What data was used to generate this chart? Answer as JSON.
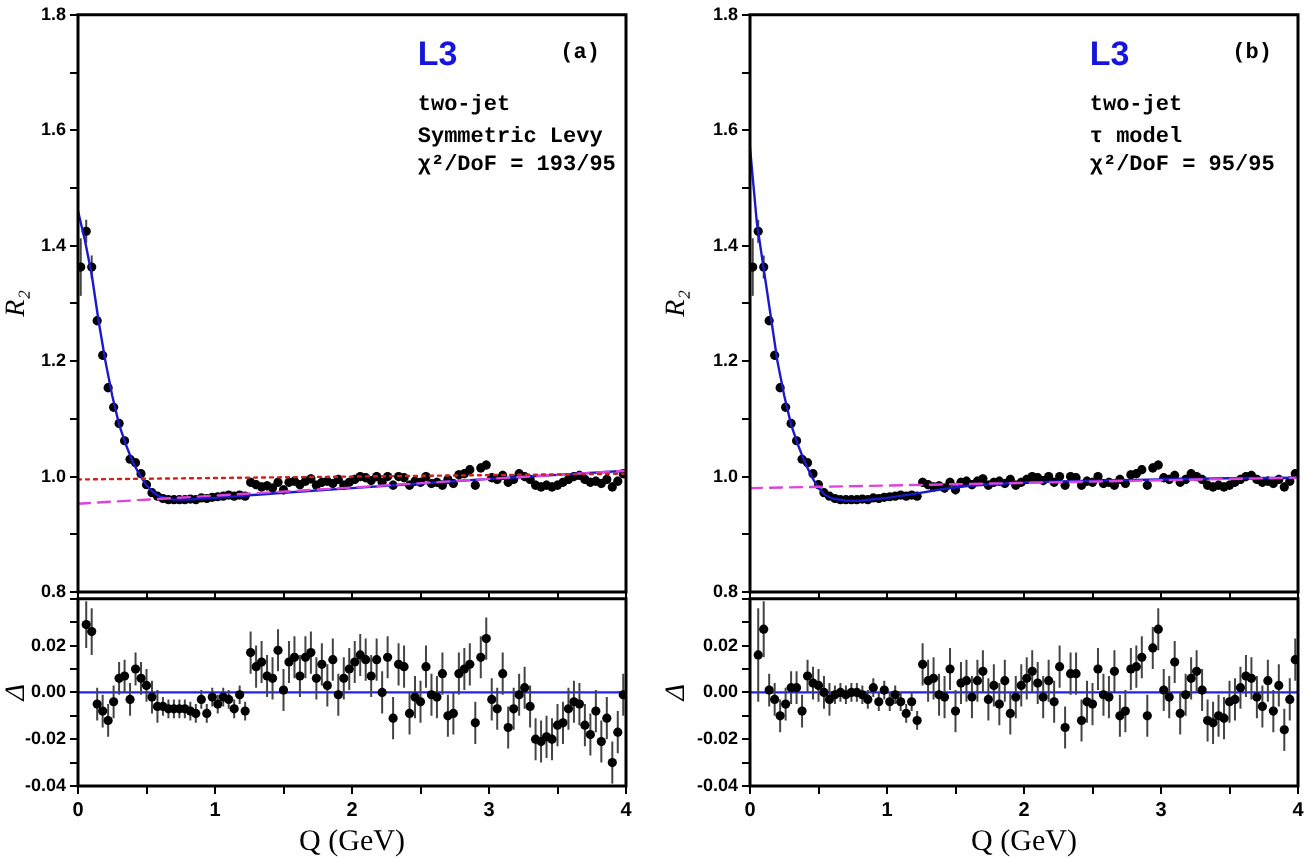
{
  "chart_data": [
    {
      "type": "scatter",
      "ylabel": "R₂",
      "annotations": [
        "L3",
        "(a)",
        "two-jet",
        "Symmetric Levy",
        "χ²/DoF = 193/95"
      ],
      "xlim": [
        0,
        4
      ],
      "ylim": [
        0.8,
        1.8
      ],
      "xticks": [
        0,
        0.5,
        1,
        1.5,
        2,
        2.5,
        3,
        3.5,
        4
      ],
      "yticks": [
        {
          "value": 0.8,
          "label": "0.8"
        },
        {
          "value": 0.9,
          "label": null
        },
        {
          "value": 1,
          "label": "1.0"
        },
        {
          "value": 1.1,
          "label": null
        },
        {
          "value": 1.2,
          "label": "1.2"
        },
        {
          "value": 1.3,
          "label": null
        },
        {
          "value": 1.4,
          "label": "1.4"
        },
        {
          "value": 1.5,
          "label": null
        },
        {
          "value": 1.6,
          "label": "1.6"
        },
        {
          "value": 1.7,
          "label": null
        },
        {
          "value": 1.8,
          "label": "1.8"
        }
      ],
      "tick_labels": "y",
      "series": [
        {
          "type": "line",
          "color": "#cc2222",
          "line_style": "dotted",
          "x": [
            0,
            4
          ],
          "values": [
            0.995,
            1.005
          ]
        },
        {
          "type": "line",
          "color": "#dd44dd",
          "line_style": "dashed",
          "x": [
            0,
            1,
            2,
            3,
            4
          ],
          "values": [
            0.953,
            0.967,
            0.981,
            0.996,
            1.01
          ]
        },
        {
          "type": "line",
          "color": "#1a1acc",
          "x": [
            0,
            0.05,
            0.1,
            0.15,
            0.2,
            0.25,
            0.3,
            0.35,
            0.4,
            0.45,
            0.5,
            0.55,
            0.6,
            0.7,
            0.8,
            1,
            1.5,
            2,
            2.5,
            3,
            3.5,
            4
          ],
          "values": [
            1.46,
            1.41,
            1.35,
            1.27,
            1.2,
            1.14,
            1.09,
            1.055,
            1.025,
            1.003,
            0.985,
            0.972,
            0.965,
            0.96,
            0.96,
            0.963,
            0.972,
            0.98,
            0.988,
            0.996,
            1.003,
            1.01
          ]
        },
        {
          "marker": "circle",
          "color": "#000000",
          "x": [
            0.02,
            0.06,
            0.1,
            0.14,
            0.18,
            0.22,
            0.26,
            0.3,
            0.34,
            0.38,
            0.42,
            0.46,
            0.5,
            0.54,
            0.58,
            0.62,
            0.66,
            0.7,
            0.74,
            0.78,
            0.82,
            0.86,
            0.9,
            0.94,
            0.98,
            1.02,
            1.06,
            1.1,
            1.14,
            1.18,
            1.22,
            1.26,
            1.3,
            1.34,
            1.38,
            1.42,
            1.46,
            1.5,
            1.54,
            1.58,
            1.62,
            1.66,
            1.7,
            1.74,
            1.78,
            1.82,
            1.86,
            1.9,
            1.94,
            1.98,
            2.02,
            2.06,
            2.1,
            2.14,
            2.18,
            2.22,
            2.26,
            2.3,
            2.34,
            2.38,
            2.42,
            2.46,
            2.5,
            2.54,
            2.58,
            2.62,
            2.66,
            2.7,
            2.74,
            2.78,
            2.82,
            2.86,
            2.9,
            2.94,
            2.98,
            3.02,
            3.06,
            3.1,
            3.14,
            3.18,
            3.22,
            3.26,
            3.3,
            3.34,
            3.38,
            3.42,
            3.46,
            3.5,
            3.54,
            3.58,
            3.62,
            3.66,
            3.7,
            3.74,
            3.78,
            3.82,
            3.86,
            3.9,
            3.94,
            3.98
          ],
          "values": [
            1.363,
            1.425,
            1.363,
            1.27,
            1.21,
            1.154,
            1.12,
            1.092,
            1.062,
            1.03,
            1.024,
            1.005,
            0.986,
            0.972,
            0.966,
            0.962,
            0.96,
            0.96,
            0.96,
            0.96,
            0.961,
            0.96,
            0.963,
            0.962,
            0.964,
            0.965,
            0.966,
            0.968,
            0.966,
            0.968,
            0.966,
            0.99,
            0.986,
            0.982,
            0.984,
            0.98,
            0.99,
            0.977,
            0.99,
            0.992,
            0.986,
            0.992,
            0.996,
            0.985,
            0.99,
            0.992,
            0.988,
            0.995,
            0.985,
            0.99,
            0.995,
            1.0,
            0.998,
            0.993,
            1.0,
            0.99,
            1.0,
            0.985,
            1.0,
            0.998,
            0.985,
            0.992,
            0.99,
            1.0,
            0.988,
            0.99,
            0.985,
            0.995,
            0.988,
            1.003,
            1.005,
            1.012,
            0.985,
            1.015,
            1.02,
            0.998,
            0.995,
            1.002,
            0.99,
            0.995,
            1.005,
            1.0,
            0.995,
            0.985,
            0.982,
            0.985,
            0.982,
            0.985,
            0.99,
            0.995,
            1.0,
            1.002,
            0.995,
            0.99,
            0.992,
            0.988,
            0.995,
            0.982,
            0.992,
            1.005
          ],
          "errors": [
            0.05,
            0.02,
            0.02,
            0.008,
            0.008,
            0.008,
            0.007,
            0.007,
            0.007,
            0.006,
            0.006,
            0.006,
            0.005,
            0.005,
            0.005,
            0.004,
            0.004,
            0.004,
            0.004,
            0.004,
            0.004,
            0.004,
            0.004,
            0.004,
            0.004,
            0.004,
            0.004,
            0.004,
            0.004,
            0.004,
            0.004,
            0.008,
            0.008,
            0.008,
            0.008,
            0.008,
            0.008,
            0.008,
            0.008,
            0.008,
            0.008,
            0.008,
            0.008,
            0.008,
            0.008,
            0.008,
            0.008,
            0.008,
            0.008,
            0.008,
            0.008,
            0.008,
            0.008,
            0.008,
            0.008,
            0.008,
            0.008,
            0.008,
            0.008,
            0.008,
            0.008,
            0.008,
            0.008,
            0.008,
            0.008,
            0.008,
            0.008,
            0.008,
            0.008,
            0.008,
            0.008,
            0.008,
            0.008,
            0.008,
            0.008,
            0.008,
            0.008,
            0.008,
            0.008,
            0.008,
            0.008,
            0.008,
            0.008,
            0.008,
            0.008,
            0.008,
            0.008,
            0.008,
            0.008,
            0.008,
            0.008,
            0.008,
            0.008,
            0.008,
            0.008,
            0.008,
            0.008,
            0.008,
            0.008,
            0.008
          ]
        }
      ]
    },
    {
      "type": "scatter",
      "ylabel": "R₂",
      "annotations": [
        "L3",
        "(b)",
        "two-jet",
        "τ model",
        "χ²/DoF = 95/95"
      ],
      "xlim": [
        0,
        4
      ],
      "ylim": [
        0.8,
        1.8
      ],
      "xticks": [
        0,
        0.5,
        1,
        1.5,
        2,
        2.5,
        3,
        3.5,
        4
      ],
      "yticks": [
        {
          "value": 0.8,
          "label": "0.8"
        },
        {
          "value": 0.9,
          "label": null
        },
        {
          "value": 1,
          "label": "1.0"
        },
        {
          "value": 1.1,
          "label": null
        },
        {
          "value": 1.2,
          "label": "1.2"
        },
        {
          "value": 1.3,
          "label": null
        },
        {
          "value": 1.4,
          "label": "1.4"
        },
        {
          "value": 1.5,
          "label": null
        },
        {
          "value": 1.6,
          "label": "1.6"
        },
        {
          "value": 1.7,
          "label": null
        },
        {
          "value": 1.8,
          "label": "1.8"
        }
      ],
      "tick_labels": "y",
      "series": [
        {
          "type": "line",
          "color": "#dd44dd",
          "line_style": "dashed",
          "x": [
            0,
            4
          ],
          "values": [
            0.98,
            0.998
          ]
        },
        {
          "type": "line",
          "color": "#1a1acc",
          "x": [
            0,
            0.05,
            0.1,
            0.15,
            0.2,
            0.25,
            0.3,
            0.35,
            0.4,
            0.45,
            0.5,
            0.55,
            0.6,
            0.7,
            0.8,
            1,
            1.2,
            1.4,
            1.6,
            2,
            2.5,
            3,
            3.5,
            4
          ],
          "values": [
            1.57,
            1.44,
            1.36,
            1.28,
            1.2,
            1.14,
            1.09,
            1.055,
            1.025,
            1.0,
            0.98,
            0.968,
            0.962,
            0.958,
            0.958,
            0.963,
            0.97,
            0.978,
            0.984,
            0.99,
            0.993,
            0.995,
            0.997,
            0.998
          ]
        },
        {
          "marker": "circle",
          "color": "#000000",
          "x": [
            0.02,
            0.06,
            0.1,
            0.14,
            0.18,
            0.22,
            0.26,
            0.3,
            0.34,
            0.38,
            0.42,
            0.46,
            0.5,
            0.54,
            0.58,
            0.62,
            0.66,
            0.7,
            0.74,
            0.78,
            0.82,
            0.86,
            0.9,
            0.94,
            0.98,
            1.02,
            1.06,
            1.1,
            1.14,
            1.18,
            1.22,
            1.26,
            1.3,
            1.34,
            1.38,
            1.42,
            1.46,
            1.5,
            1.54,
            1.58,
            1.62,
            1.66,
            1.7,
            1.74,
            1.78,
            1.82,
            1.86,
            1.9,
            1.94,
            1.98,
            2.02,
            2.06,
            2.1,
            2.14,
            2.18,
            2.22,
            2.26,
            2.3,
            2.34,
            2.38,
            2.42,
            2.46,
            2.5,
            2.54,
            2.58,
            2.62,
            2.66,
            2.7,
            2.74,
            2.78,
            2.82,
            2.86,
            2.9,
            2.94,
            2.98,
            3.02,
            3.06,
            3.1,
            3.14,
            3.18,
            3.22,
            3.26,
            3.3,
            3.34,
            3.38,
            3.42,
            3.46,
            3.5,
            3.54,
            3.58,
            3.62,
            3.66,
            3.7,
            3.74,
            3.78,
            3.82,
            3.86,
            3.9,
            3.94,
            3.98
          ],
          "values": [
            1.363,
            1.425,
            1.363,
            1.27,
            1.21,
            1.154,
            1.12,
            1.092,
            1.062,
            1.03,
            1.024,
            1.005,
            0.986,
            0.972,
            0.966,
            0.962,
            0.96,
            0.96,
            0.96,
            0.96,
            0.961,
            0.96,
            0.963,
            0.962,
            0.964,
            0.965,
            0.966,
            0.968,
            0.966,
            0.968,
            0.966,
            0.99,
            0.986,
            0.982,
            0.984,
            0.98,
            0.99,
            0.977,
            0.99,
            0.992,
            0.986,
            0.992,
            0.996,
            0.985,
            0.99,
            0.992,
            0.988,
            0.995,
            0.985,
            0.99,
            0.995,
            1.0,
            0.998,
            0.993,
            1.0,
            0.99,
            1.0,
            0.985,
            1.0,
            0.998,
            0.985,
            0.992,
            0.99,
            1.0,
            0.988,
            0.99,
            0.985,
            0.995,
            0.988,
            1.003,
            1.005,
            1.012,
            0.985,
            1.015,
            1.02,
            0.998,
            0.995,
            1.002,
            0.99,
            0.995,
            1.005,
            1.0,
            0.995,
            0.985,
            0.982,
            0.985,
            0.982,
            0.985,
            0.99,
            0.995,
            1.0,
            1.002,
            0.995,
            0.99,
            0.992,
            0.988,
            0.995,
            0.982,
            0.992,
            1.005
          ],
          "errors": [
            0.05,
            0.02,
            0.02,
            0.008,
            0.008,
            0.008,
            0.007,
            0.007,
            0.007,
            0.006,
            0.006,
            0.006,
            0.005,
            0.005,
            0.005,
            0.004,
            0.004,
            0.004,
            0.004,
            0.004,
            0.004,
            0.004,
            0.004,
            0.004,
            0.004,
            0.004,
            0.004,
            0.004,
            0.004,
            0.004,
            0.004,
            0.008,
            0.008,
            0.008,
            0.008,
            0.008,
            0.008,
            0.008,
            0.008,
            0.008,
            0.008,
            0.008,
            0.008,
            0.008,
            0.008,
            0.008,
            0.008,
            0.008,
            0.008,
            0.008,
            0.008,
            0.008,
            0.008,
            0.008,
            0.008,
            0.008,
            0.008,
            0.008,
            0.008,
            0.008,
            0.008,
            0.008,
            0.008,
            0.008,
            0.008,
            0.008,
            0.008,
            0.008,
            0.008,
            0.008,
            0.008,
            0.008,
            0.008,
            0.008,
            0.008,
            0.008,
            0.008,
            0.008,
            0.008,
            0.008,
            0.008,
            0.008,
            0.008,
            0.008,
            0.008,
            0.008,
            0.008,
            0.008,
            0.008,
            0.008,
            0.008,
            0.008,
            0.008,
            0.008,
            0.008,
            0.008,
            0.008,
            0.008,
            0.008,
            0.008
          ]
        }
      ]
    },
    {
      "type": "scatter",
      "xlabel": "Q (GeV)",
      "ylabel": "Δ",
      "xlim": [
        0,
        4
      ],
      "ylim": [
        -0.04,
        0.04
      ],
      "xticks": [
        0,
        {
          "value": 0.5,
          "label": null
        },
        1,
        {
          "value": 1.5,
          "label": null
        },
        2,
        {
          "value": 2.5,
          "label": null
        },
        3,
        {
          "value": 3.5,
          "label": null
        },
        4
      ],
      "yticks": [
        {
          "value": -0.04,
          "label": "-0.04"
        },
        {
          "value": -0.03,
          "label": null
        },
        {
          "value": -0.02,
          "label": "-0.02"
        },
        {
          "value": -0.01,
          "label": null
        },
        {
          "value": 0,
          "label": "0.00"
        },
        {
          "value": 0.01,
          "label": null
        },
        {
          "value": 0.02,
          "label": "0.02"
        },
        {
          "value": 0.03,
          "label": null
        },
        {
          "value": 0.04,
          "label": null
        }
      ],
      "marker": "circle",
      "ref_lines": [
        {
          "axis": "y",
          "value": 0,
          "color": "#2222ee"
        }
      ],
      "series": [
        {
          "color": "#000000",
          "x": [
            0.06,
            0.1,
            0.14,
            0.18,
            0.22,
            0.26,
            0.3,
            0.34,
            0.38,
            0.42,
            0.46,
            0.5,
            0.54,
            0.58,
            0.62,
            0.66,
            0.7,
            0.74,
            0.78,
            0.82,
            0.86,
            0.9,
            0.94,
            0.98,
            1.02,
            1.06,
            1.1,
            1.14,
            1.18,
            1.22,
            1.26,
            1.3,
            1.34,
            1.38,
            1.42,
            1.46,
            1.5,
            1.54,
            1.58,
            1.62,
            1.66,
            1.7,
            1.74,
            1.78,
            1.82,
            1.86,
            1.9,
            1.94,
            1.98,
            2.02,
            2.06,
            2.1,
            2.14,
            2.18,
            2.22,
            2.26,
            2.3,
            2.34,
            2.38,
            2.42,
            2.46,
            2.5,
            2.54,
            2.58,
            2.62,
            2.66,
            2.7,
            2.74,
            2.78,
            2.82,
            2.86,
            2.9,
            2.94,
            2.98,
            3.02,
            3.06,
            3.1,
            3.14,
            3.18,
            3.22,
            3.26,
            3.3,
            3.34,
            3.38,
            3.42,
            3.46,
            3.5,
            3.54,
            3.58,
            3.62,
            3.66,
            3.7,
            3.74,
            3.78,
            3.82,
            3.86,
            3.9,
            3.94,
            3.98
          ],
          "values": [
            0.029,
            0.026,
            -0.005,
            -0.008,
            -0.012,
            -0.004,
            0.006,
            0.007,
            -0.003,
            0.01,
            0.006,
            0.003,
            -0.002,
            -0.006,
            -0.006,
            -0.007,
            -0.007,
            -0.007,
            -0.007,
            -0.008,
            -0.009,
            -0.003,
            -0.009,
            -0.002,
            -0.005,
            -0.002,
            -0.003,
            -0.007,
            -0.001,
            -0.008,
            0.017,
            0.011,
            0.013,
            0.007,
            0.006,
            0.018,
            0.001,
            0.013,
            0.015,
            0.007,
            0.015,
            0.017,
            0.006,
            0.012,
            0.003,
            0.014,
            -0.001,
            0.006,
            0.01,
            0.013,
            0.016,
            0.014,
            0.007,
            0.014,
            0.0,
            0.015,
            -0.011,
            0.012,
            0.011,
            -0.009,
            -0.002,
            -0.004,
            0.011,
            -0.001,
            -0.002,
            0.008,
            -0.01,
            -0.009,
            0.008,
            0.01,
            0.012,
            -0.013,
            0.015,
            0.023,
            -0.003,
            -0.007,
            0.008,
            -0.015,
            -0.007,
            -0.001,
            0.002,
            -0.006,
            -0.02,
            -0.021,
            -0.019,
            -0.02,
            -0.014,
            -0.013,
            -0.007,
            -0.004,
            -0.005,
            -0.014,
            -0.018,
            -0.008,
            -0.021,
            -0.011,
            -0.03,
            -0.017,
            -0.001
          ],
          "errors": [
            0.01,
            0.01,
            0.007,
            0.007,
            0.007,
            0.007,
            0.007,
            0.007,
            0.007,
            0.007,
            0.007,
            0.007,
            0.007,
            0.007,
            0.004,
            0.004,
            0.004,
            0.004,
            0.004,
            0.004,
            0.004,
            0.004,
            0.004,
            0.004,
            0.004,
            0.004,
            0.004,
            0.004,
            0.004,
            0.004,
            0.009,
            0.009,
            0.009,
            0.009,
            0.009,
            0.009,
            0.009,
            0.009,
            0.009,
            0.009,
            0.009,
            0.009,
            0.009,
            0.009,
            0.009,
            0.009,
            0.009,
            0.009,
            0.009,
            0.009,
            0.009,
            0.009,
            0.009,
            0.009,
            0.009,
            0.009,
            0.009,
            0.009,
            0.009,
            0.009,
            0.009,
            0.009,
            0.009,
            0.009,
            0.009,
            0.009,
            0.009,
            0.009,
            0.009,
            0.009,
            0.009,
            0.009,
            0.009,
            0.009,
            0.009,
            0.009,
            0.009,
            0.009,
            0.009,
            0.009,
            0.009,
            0.009,
            0.009,
            0.009,
            0.009,
            0.009,
            0.009,
            0.009,
            0.009,
            0.009,
            0.009,
            0.009,
            0.009,
            0.009,
            0.009,
            0.009,
            0.009,
            0.009,
            0.009
          ]
        }
      ]
    },
    {
      "type": "scatter",
      "xlabel": "Q (GeV)",
      "ylabel": "Δ",
      "xlim": [
        0,
        4
      ],
      "ylim": [
        -0.04,
        0.04
      ],
      "xticks": [
        0,
        {
          "value": 0.5,
          "label": null
        },
        1,
        {
          "value": 1.5,
          "label": null
        },
        2,
        {
          "value": 2.5,
          "label": null
        },
        3,
        {
          "value": 3.5,
          "label": null
        },
        4
      ],
      "yticks": [
        {
          "value": -0.04,
          "label": "-0.04"
        },
        {
          "value": -0.03,
          "label": null
        },
        {
          "value": -0.02,
          "label": "-0.02"
        },
        {
          "value": -0.01,
          "label": null
        },
        {
          "value": 0,
          "label": "0.00"
        },
        {
          "value": 0.01,
          "label": null
        },
        {
          "value": 0.02,
          "label": "0.02"
        },
        {
          "value": 0.03,
          "label": null
        },
        {
          "value": 0.04,
          "label": null
        }
      ],
      "marker": "circle",
      "ref_lines": [
        {
          "axis": "y",
          "value": 0,
          "color": "#2222ee"
        }
      ],
      "series": [
        {
          "color": "#000000",
          "x": [
            0.06,
            0.1,
            0.14,
            0.18,
            0.22,
            0.26,
            0.3,
            0.34,
            0.38,
            0.42,
            0.46,
            0.5,
            0.54,
            0.58,
            0.62,
            0.66,
            0.7,
            0.74,
            0.78,
            0.82,
            0.86,
            0.9,
            0.94,
            0.98,
            1.02,
            1.06,
            1.1,
            1.14,
            1.18,
            1.22,
            1.26,
            1.3,
            1.34,
            1.38,
            1.42,
            1.46,
            1.5,
            1.54,
            1.58,
            1.62,
            1.66,
            1.7,
            1.74,
            1.78,
            1.82,
            1.86,
            1.9,
            1.94,
            1.98,
            2.02,
            2.06,
            2.1,
            2.14,
            2.18,
            2.22,
            2.26,
            2.3,
            2.34,
            2.38,
            2.42,
            2.46,
            2.5,
            2.54,
            2.58,
            2.62,
            2.66,
            2.7,
            2.74,
            2.78,
            2.82,
            2.86,
            2.9,
            2.94,
            2.98,
            3.02,
            3.06,
            3.1,
            3.14,
            3.18,
            3.22,
            3.26,
            3.3,
            3.34,
            3.38,
            3.42,
            3.46,
            3.5,
            3.54,
            3.58,
            3.62,
            3.66,
            3.7,
            3.74,
            3.78,
            3.82,
            3.86,
            3.9,
            3.94,
            3.98
          ],
          "values": [
            0.016,
            0.027,
            0.001,
            -0.003,
            -0.01,
            -0.005,
            0.002,
            0.002,
            -0.008,
            0.007,
            0.004,
            0.003,
            0.0,
            -0.003,
            -0.001,
            0.0,
            -0.001,
            0.0,
            0.0,
            -0.001,
            -0.003,
            0.002,
            -0.004,
            0.001,
            -0.004,
            -0.001,
            -0.004,
            -0.009,
            -0.004,
            -0.012,
            0.012,
            0.005,
            0.006,
            -0.001,
            -0.002,
            0.01,
            -0.008,
            0.004,
            0.005,
            -0.002,
            0.005,
            0.009,
            -0.003,
            0.003,
            -0.005,
            0.005,
            -0.009,
            -0.002,
            0.003,
            0.006,
            0.009,
            0.004,
            -0.002,
            0.005,
            -0.004,
            0.011,
            -0.015,
            0.008,
            0.008,
            -0.012,
            -0.004,
            -0.005,
            0.01,
            -0.001,
            -0.002,
            0.009,
            -0.01,
            -0.008,
            0.01,
            0.011,
            0.015,
            -0.01,
            0.019,
            0.027,
            0.001,
            -0.002,
            0.013,
            -0.009,
            -0.001,
            0.006,
            0.009,
            0.001,
            -0.012,
            -0.013,
            -0.01,
            -0.011,
            -0.004,
            -0.003,
            0.002,
            0.007,
            0.006,
            -0.002,
            -0.006,
            0.005,
            -0.008,
            0.003,
            -0.016,
            -0.003,
            0.014
          ],
          "errors": [
            0.02,
            0.012,
            0.007,
            0.007,
            0.007,
            0.007,
            0.007,
            0.007,
            0.007,
            0.007,
            0.007,
            0.007,
            0.007,
            0.007,
            0.004,
            0.004,
            0.004,
            0.004,
            0.004,
            0.004,
            0.004,
            0.004,
            0.004,
            0.004,
            0.004,
            0.004,
            0.004,
            0.004,
            0.004,
            0.004,
            0.009,
            0.009,
            0.009,
            0.009,
            0.009,
            0.009,
            0.009,
            0.009,
            0.009,
            0.009,
            0.009,
            0.009,
            0.009,
            0.009,
            0.009,
            0.009,
            0.009,
            0.009,
            0.009,
            0.009,
            0.009,
            0.009,
            0.009,
            0.009,
            0.009,
            0.009,
            0.009,
            0.009,
            0.009,
            0.009,
            0.009,
            0.009,
            0.009,
            0.009,
            0.009,
            0.009,
            0.009,
            0.009,
            0.009,
            0.009,
            0.009,
            0.009,
            0.009,
            0.009,
            0.009,
            0.009,
            0.009,
            0.009,
            0.009,
            0.009,
            0.009,
            0.009,
            0.009,
            0.009,
            0.009,
            0.009,
            0.009,
            0.009,
            0.009,
            0.009,
            0.009,
            0.009,
            0.009,
            0.009,
            0.009,
            0.009,
            0.009,
            0.009,
            0.009
          ]
        }
      ]
    }
  ]
}
